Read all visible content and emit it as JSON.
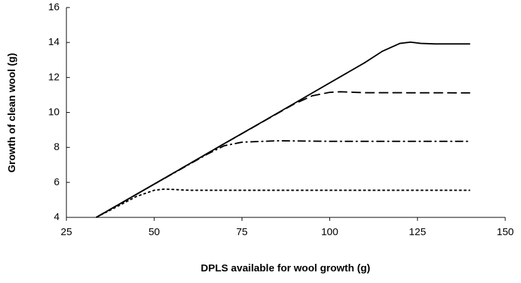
{
  "chart_data": {
    "type": "line",
    "xlabel": "DPLS available for wool growth (g)",
    "ylabel": "Growth of clean wool (g)",
    "xlim": [
      25,
      150
    ],
    "xticks": [
      25,
      50,
      75,
      100,
      125,
      150
    ],
    "ylim": [
      4,
      16
    ],
    "yticks": [
      4,
      6,
      8,
      10,
      12,
      14,
      16
    ],
    "grid": false,
    "series": [
      {
        "color": "#000000",
        "dash": "solid",
        "x": [
          33.5,
          40,
          50,
          60,
          70,
          80,
          90,
          100,
          110,
          115,
          120,
          123,
          126,
          130,
          140
        ],
        "values": [
          4,
          4.75,
          5.9,
          7.06,
          8.22,
          9.37,
          10.53,
          11.69,
          12.85,
          13.5,
          13.95,
          14.02,
          13.95,
          13.92,
          13.92
        ]
      },
      {
        "color": "#000000",
        "dash": "dashed",
        "x": [
          33.5,
          50,
          70,
          90,
          95,
          100,
          103,
          110,
          140
        ],
        "values": [
          4,
          5.9,
          8.22,
          10.5,
          10.95,
          11.15,
          11.18,
          11.13,
          11.12
        ]
      },
      {
        "color": "#000000",
        "dash": "dashdot",
        "x": [
          33.5,
          50,
          65,
          70,
          75,
          85,
          100,
          140
        ],
        "values": [
          4,
          5.9,
          7.6,
          8.1,
          8.3,
          8.38,
          8.35,
          8.35
        ]
      },
      {
        "color": "#000000",
        "dash": "dotted",
        "x": [
          33.5,
          45,
          50,
          53,
          60,
          140
        ],
        "values": [
          4,
          5.2,
          5.55,
          5.62,
          5.55,
          5.55
        ]
      }
    ]
  }
}
